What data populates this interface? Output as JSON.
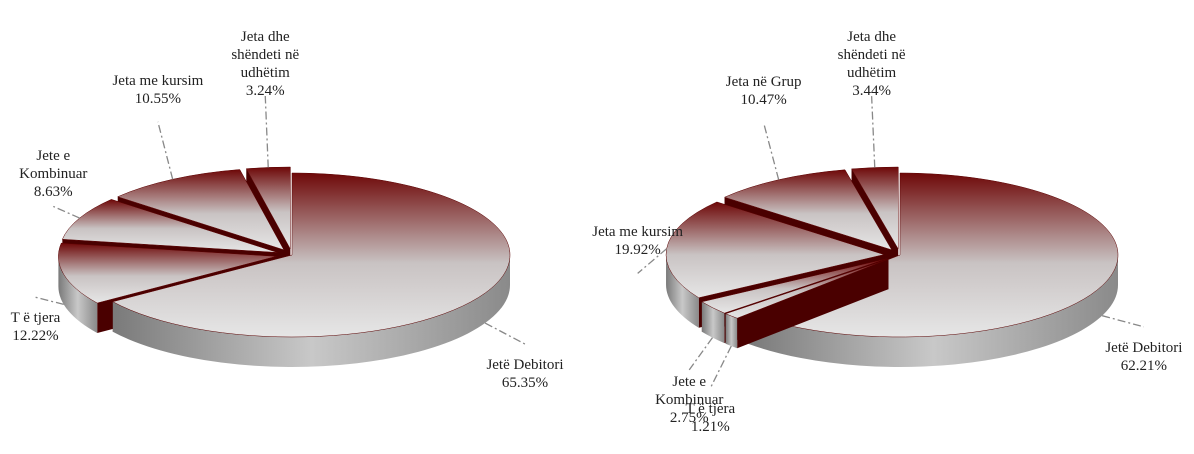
{
  "chart_data": [
    {
      "type": "pie",
      "categories": [
        "Jetë Debitori",
        "T ë tjera",
        "Jete e Kombinuar",
        "Jeta me kursim",
        "Jeta dhe shëndeti në udhëtim"
      ],
      "values": [
        65.35,
        12.22,
        8.63,
        10.55,
        3.24
      ],
      "value_labels": [
        "65.35%",
        "12.22%",
        "8.63%",
        "10.55%",
        "3.24%"
      ]
    },
    {
      "type": "pie",
      "categories": [
        "Jetë Debitori",
        "T ë tjera",
        "Jete e Kombinuar",
        "Jeta me kursim",
        "Jeta në Grup",
        "Jeta dhe shëndeti në udhëtim"
      ],
      "values": [
        62.21,
        1.21,
        2.75,
        19.92,
        10.47,
        3.44
      ],
      "value_labels": [
        "62.21%",
        "1.21%",
        "2.75%",
        "19.92%",
        "10.47%",
        "3.44%"
      ]
    }
  ]
}
